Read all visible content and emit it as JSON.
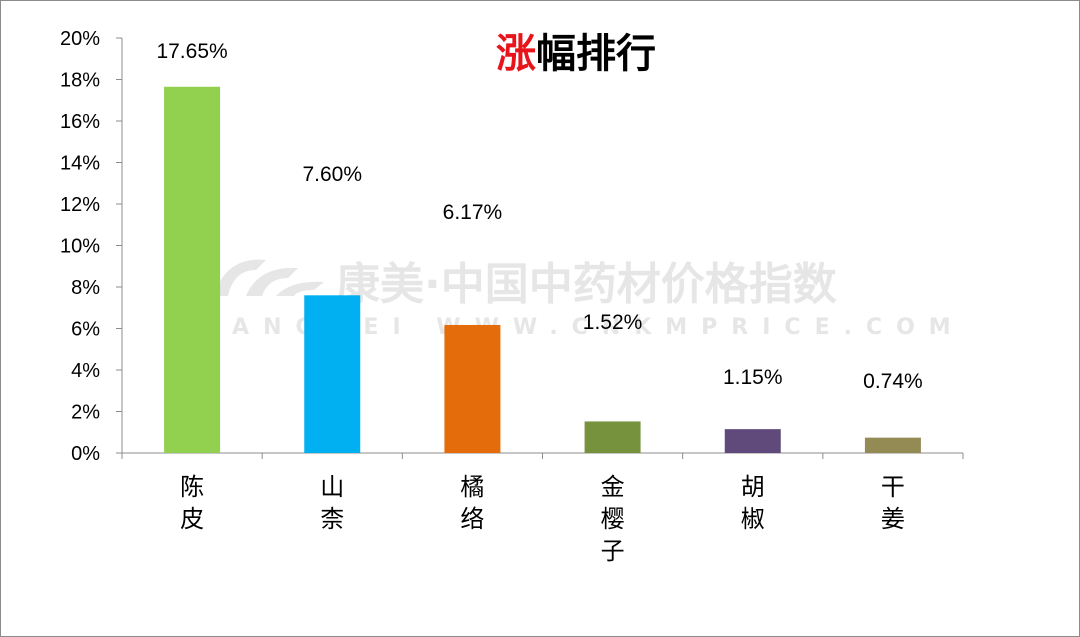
{
  "watermark": {
    "line1": "康美·中国中药材价格指数",
    "line2": "KANGMEI WWW.CNKMPRICE.COM"
  },
  "chart_data": {
    "type": "bar",
    "title": {
      "highlight": "涨",
      "rest": "幅排行",
      "highlight_color": "#e8141b",
      "color": "#000000"
    },
    "categories": [
      "陈\n皮",
      "山\n柰",
      "橘\n络",
      "金\n樱\n子",
      "胡\n椒",
      "干\n姜"
    ],
    "values": [
      17.65,
      7.6,
      6.17,
      1.52,
      1.15,
      0.74
    ],
    "data_labels": [
      "17.65%",
      "7.60%",
      "6.17%",
      "1.52%",
      "1.15%",
      "0.74%"
    ],
    "colors": [
      "#92d050",
      "#00b0f0",
      "#e46c0a",
      "#76923c",
      "#604a7b",
      "#948a54"
    ],
    "ylim": [
      0,
      20
    ],
    "yticks": [
      0,
      2,
      4,
      6,
      8,
      10,
      12,
      14,
      16,
      18,
      20
    ],
    "ytick_labels": [
      "0%",
      "2%",
      "4%",
      "6%",
      "8%",
      "10%",
      "12%",
      "14%",
      "16%",
      "18%",
      "20%"
    ],
    "xlabel": "",
    "ylabel": "",
    "grid": false,
    "legend": "none"
  }
}
